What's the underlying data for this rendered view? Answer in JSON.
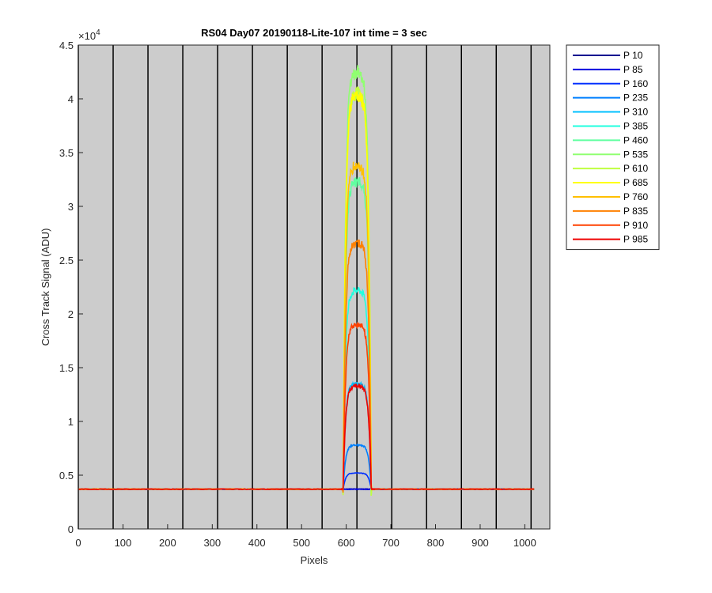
{
  "chart_data": {
    "type": "line",
    "title": "RS04 Day07 20190118-Lite-107 int time = 3 sec",
    "xlabel": "Pixels",
    "ylabel": "Cross Track Signal (ADU)",
    "y_exponent_label": "×10",
    "y_exponent_power": "4",
    "xlim": [
      0,
      1056
    ],
    "ylim": [
      0,
      45000
    ],
    "x_ticks": [
      0,
      100,
      200,
      300,
      400,
      500,
      600,
      700,
      800,
      900,
      1000
    ],
    "x_tick_labels": [
      "0",
      "100",
      "200",
      "300",
      "400",
      "500",
      "600",
      "700",
      "800",
      "900",
      "1000"
    ],
    "y_ticks": [
      0,
      5000,
      10000,
      15000,
      20000,
      25000,
      30000,
      35000,
      40000,
      45000
    ],
    "y_tick_labels": [
      "0",
      "0.5",
      "1",
      "1.5",
      "2",
      "2.5",
      "3",
      "3.5",
      "4",
      "4.5"
    ],
    "plot_background": "#cccccc",
    "vertical_lines_x": [
      0,
      78,
      156,
      234,
      312,
      390,
      468,
      546,
      624,
      702,
      780,
      858,
      936,
      1014
    ],
    "legend_position": "outside-right",
    "baseline": 3700,
    "plateau_x": [
      593,
      656
    ],
    "series": [
      {
        "name": "P 10",
        "color": "#00008f",
        "peak": 3700
      },
      {
        "name": "P 85",
        "color": "#0000df",
        "peak": 3700
      },
      {
        "name": "P 160",
        "color": "#0030ff",
        "peak": 5200
      },
      {
        "name": "P 235",
        "color": "#0080ff",
        "peak": 7800
      },
      {
        "name": "P 310",
        "color": "#00c0ff",
        "peak": 13500
      },
      {
        "name": "P 385",
        "color": "#20ffdf",
        "peak": 22200
      },
      {
        "name": "P 460",
        "color": "#60ffa0",
        "peak": 32300
      },
      {
        "name": "P 535",
        "color": "#90ff70",
        "peak": 42500
      },
      {
        "name": "P 610",
        "color": "#c0ff40",
        "peak": 40500
      },
      {
        "name": "P 685",
        "color": "#ffff00",
        "peak": 40200
      },
      {
        "name": "P 760",
        "color": "#ffc000",
        "peak": 33800
      },
      {
        "name": "P 835",
        "color": "#ff8000",
        "peak": 26600
      },
      {
        "name": "P 910",
        "color": "#ff4000",
        "peak": 19000
      },
      {
        "name": "P 985",
        "color": "#ef0000",
        "peak": 13300
      }
    ]
  }
}
